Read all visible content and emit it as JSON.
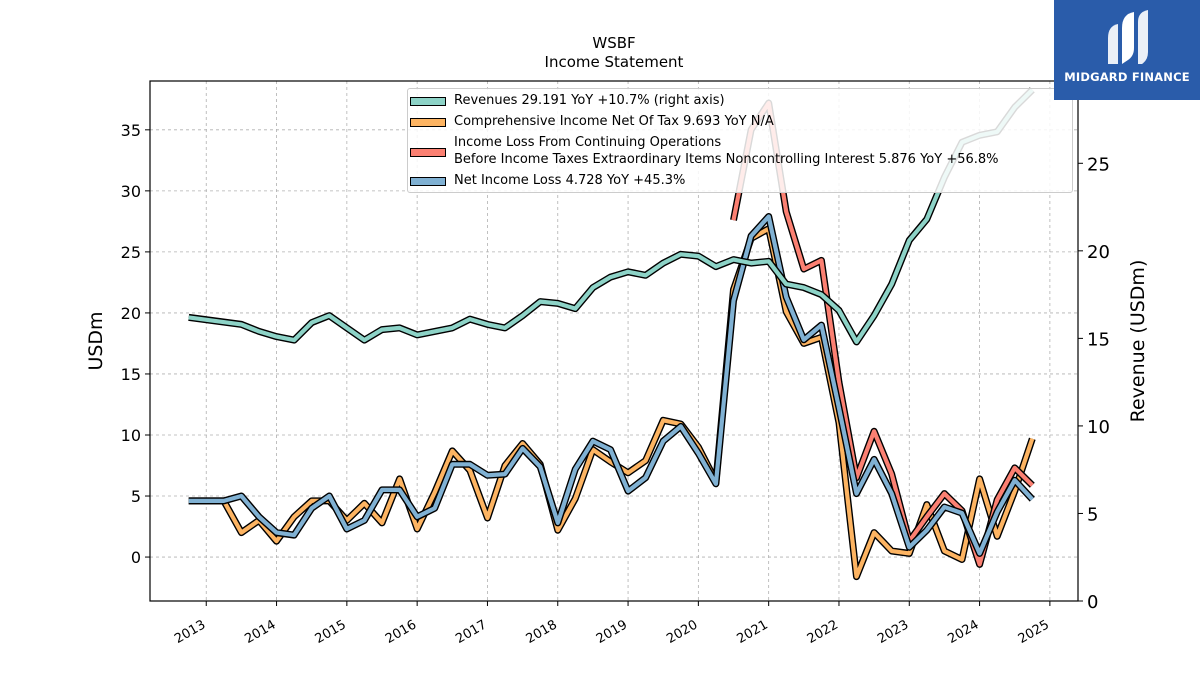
{
  "chart_data": {
    "type": "line",
    "title": "WSBF",
    "subtitle": "Income Statement",
    "ylabel": "USDm",
    "ylabel_right": "Revenue (USDm)",
    "ylim": [
      -3.6,
      39
    ],
    "ylim_right": [
      0,
      29.7
    ],
    "xlim": [
      2012.2,
      2025.4
    ],
    "grid": true,
    "legend_placement": "top-center",
    "y_ticks": [
      0,
      5,
      10,
      15,
      20,
      25,
      30,
      35
    ],
    "y_ticks_right": [
      0,
      5,
      10,
      15,
      20,
      25
    ],
    "x_ticks": [
      "2013",
      "2014",
      "2015",
      "2016",
      "2017",
      "2018",
      "2019",
      "2020",
      "2021",
      "2022",
      "2023",
      "2024",
      "2025"
    ],
    "series": [
      {
        "name": "Revenues",
        "legend_label": "Revenues  29.191 YoY +10.7% (right axis)",
        "axis": "right",
        "color": "#8dd3c7",
        "x": [
          2012.75,
          2013.5,
          2013.75,
          2014.0,
          2014.25,
          2014.5,
          2014.75,
          2015.0,
          2015.25,
          2015.5,
          2015.75,
          2016.0,
          2016.25,
          2016.5,
          2016.75,
          2017.0,
          2017.25,
          2017.5,
          2017.75,
          2018.0,
          2018.25,
          2018.5,
          2018.75,
          2019.0,
          2019.25,
          2019.5,
          2019.75,
          2020.0,
          2020.25,
          2020.5,
          2020.75,
          2021.0,
          2021.25,
          2021.5,
          2021.75,
          2022.0,
          2022.25,
          2022.5,
          2022.75,
          2023.0,
          2023.25,
          2023.5,
          2023.75,
          2024.0,
          2024.25,
          2024.5,
          2024.75
        ],
        "values": [
          16.2,
          15.8,
          15.4,
          15.1,
          14.9,
          15.9,
          16.3,
          15.6,
          14.9,
          15.5,
          15.6,
          15.2,
          15.4,
          15.6,
          16.1,
          15.8,
          15.6,
          16.3,
          17.1,
          17.0,
          16.7,
          17.9,
          18.5,
          18.8,
          18.6,
          19.3,
          19.8,
          19.7,
          19.1,
          19.5,
          19.3,
          19.4,
          18.1,
          17.9,
          17.5,
          16.6,
          14.8,
          16.3,
          18.1,
          20.6,
          21.8,
          24.2,
          26.2,
          26.6,
          26.8,
          28.2,
          29.191
        ]
      },
      {
        "name": "Comprehensive Income Net Of Tax",
        "legend_label": "Comprehensive Income Net Of Tax  9.693 YoY N/A",
        "axis": "left",
        "color": "#fdb462",
        "x": [
          2012.75,
          2013.25,
          2013.5,
          2013.75,
          2014.0,
          2014.25,
          2014.5,
          2014.75,
          2015.0,
          2015.25,
          2015.5,
          2015.75,
          2016.0,
          2016.25,
          2016.5,
          2016.75,
          2017.0,
          2017.25,
          2017.5,
          2017.75,
          2018.0,
          2018.25,
          2018.5,
          2018.75,
          2019.0,
          2019.25,
          2019.5,
          2019.75,
          2020.0,
          2020.25,
          2020.5,
          2020.75,
          2021.0,
          2021.25,
          2021.5,
          2021.75,
          2022.0,
          2022.25,
          2022.5,
          2022.75,
          2023.0,
          2023.25,
          2023.5,
          2023.75,
          2024.0,
          2024.25,
          2024.5,
          2024.75
        ],
        "values": [
          4.6,
          4.6,
          2.0,
          3.0,
          1.3,
          3.3,
          4.6,
          4.6,
          3.0,
          4.4,
          2.8,
          6.4,
          2.3,
          5.3,
          8.7,
          7.1,
          3.2,
          7.5,
          9.3,
          7.6,
          2.2,
          4.8,
          8.8,
          7.8,
          6.9,
          7.9,
          11.2,
          10.9,
          9.0,
          6.2,
          21.9,
          26.1,
          26.9,
          20.1,
          17.5,
          18.0,
          11.0,
          -1.6,
          2.0,
          0.5,
          0.3,
          4.3,
          0.5,
          -0.2,
          6.4,
          1.7,
          5.4,
          9.693
        ]
      },
      {
        "name": "Income Loss From Continuing Operations Before Income Taxes Extraordinary Items Noncontrolling Interest",
        "legend_label_line1": "Income Loss From Continuing Operations",
        "legend_label_line2": "Before Income Taxes Extraordinary Items Noncontrolling Interest  5.876 YoY +56.8%",
        "axis": "left",
        "color": "#fb8072",
        "x": [
          2020.5,
          2020.75,
          2021.0,
          2021.25,
          2021.5,
          2021.75,
          2022.0,
          2022.25,
          2022.5,
          2022.75,
          2023.0,
          2023.25,
          2023.5,
          2023.75,
          2024.0,
          2024.25,
          2024.5,
          2024.75
        ],
        "values": [
          27.6,
          35.0,
          37.2,
          28.3,
          23.6,
          24.3,
          14.3,
          6.5,
          10.3,
          6.8,
          1.3,
          3.3,
          5.2,
          3.8,
          -0.6,
          4.7,
          7.3,
          5.876
        ]
      },
      {
        "name": "Net Income Loss",
        "legend_label": "Net Income Loss  4.728 YoY +45.3%",
        "axis": "left",
        "color": "#80b1d3",
        "x": [
          2012.75,
          2013.25,
          2013.5,
          2013.75,
          2014.0,
          2014.25,
          2014.5,
          2014.75,
          2015.0,
          2015.25,
          2015.5,
          2015.75,
          2016.0,
          2016.25,
          2016.5,
          2016.75,
          2017.0,
          2017.25,
          2017.5,
          2017.75,
          2018.0,
          2018.25,
          2018.5,
          2018.75,
          2019.0,
          2019.25,
          2019.5,
          2019.75,
          2020.0,
          2020.25,
          2020.5,
          2020.75,
          2021.0,
          2021.25,
          2021.5,
          2021.75,
          2022.0,
          2022.25,
          2022.5,
          2022.75,
          2023.0,
          2023.25,
          2023.5,
          2023.75,
          2024.0,
          2024.25,
          2024.5,
          2024.75
        ],
        "values": [
          4.6,
          4.6,
          5.0,
          3.3,
          2.0,
          1.8,
          4.0,
          5.0,
          2.3,
          3.0,
          5.5,
          5.5,
          3.3,
          4.0,
          7.6,
          7.6,
          6.7,
          6.8,
          8.9,
          7.4,
          2.8,
          7.2,
          9.5,
          8.8,
          5.4,
          6.5,
          9.5,
          10.7,
          8.5,
          6.0,
          21.0,
          26.3,
          27.9,
          21.3,
          17.8,
          19.0,
          12.2,
          5.2,
          8.0,
          5.2,
          0.8,
          2.2,
          4.1,
          3.6,
          0.3,
          3.7,
          6.3,
          4.728
        ]
      }
    ]
  },
  "logo": {
    "text": "MIDGARD FINANCE"
  }
}
